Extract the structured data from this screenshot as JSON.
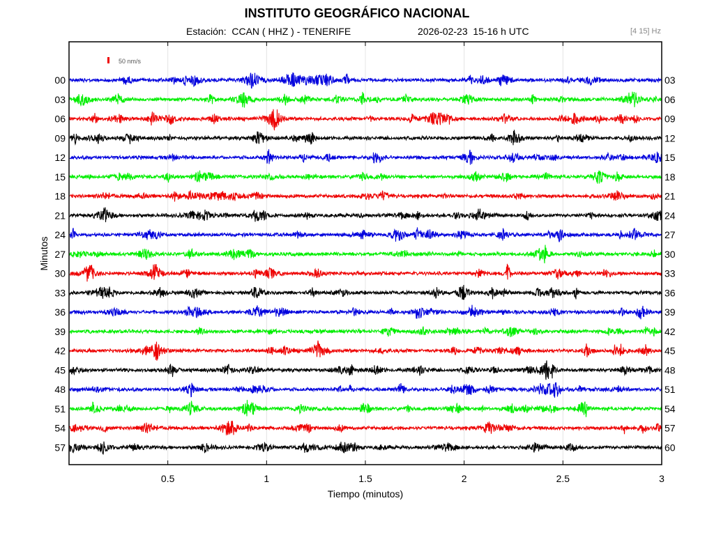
{
  "header": {
    "title": "INSTITUTO GEOGRÁFICO NACIONAL",
    "station_label": "Estación:",
    "station": "CCAN ( HHZ ) - TENERIFE",
    "date": "2026-02-23",
    "hour_range": "15-16 h UTC",
    "band": "[4 15] Hz"
  },
  "chart_data": {
    "type": "line",
    "title": "INSTITUTO GEOGRÁFICO NACIONAL",
    "xlabel": "Tiempo (minutos)",
    "ylabel": "Minutos",
    "xlim": [
      0,
      3
    ],
    "x_ticks": [
      "0.5",
      "1",
      "1.5",
      "2",
      "2.5",
      "3"
    ],
    "x_tick_values": [
      0.5,
      1,
      1.5,
      2,
      2.5,
      3
    ],
    "scale_label": "50 nm/s",
    "grid": true,
    "left_labels": [
      "00",
      "03",
      "06",
      "09",
      "12",
      "15",
      "18",
      "21",
      "24",
      "27",
      "30",
      "33",
      "36",
      "39",
      "42",
      "45",
      "48",
      "51",
      "54",
      "57"
    ],
    "right_labels": [
      "03",
      "06",
      "09",
      "12",
      "15",
      "18",
      "21",
      "24",
      "27",
      "30",
      "33",
      "36",
      "39",
      "42",
      "45",
      "48",
      "51",
      "54",
      "57",
      "60"
    ],
    "trace_colors": [
      "#0000dd",
      "#00ee00",
      "#ee0000",
      "#000000"
    ]
  }
}
